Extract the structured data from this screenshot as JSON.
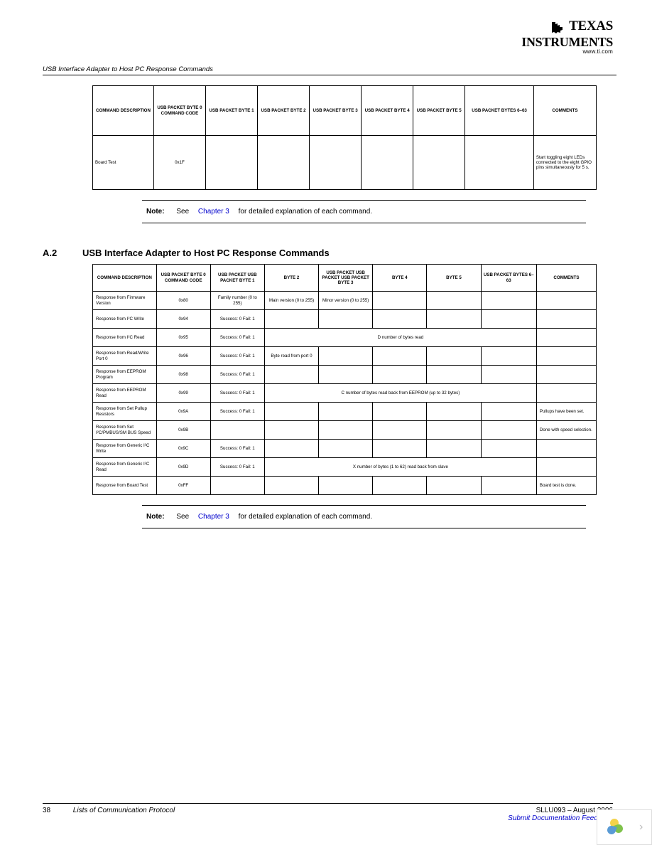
{
  "logo": {
    "line1": "TEXAS",
    "line2": "INSTRUMENTS",
    "url": "www.ti.com"
  },
  "header_title": "USB Interface Adapter to Host PC Response Commands",
  "table1": {
    "headers": [
      "COMMAND DESCRIPTION",
      "USB PACKET BYTE 0 COMMAND CODE",
      "USB PACKET BYTE 1",
      "USB PACKET BYTE 2",
      "USB PACKET BYTE 3",
      "USB PACKET BYTE 4",
      "USB PACKET BYTE 5",
      "USB PACKET BYTES 6–63",
      "COMMENTS"
    ],
    "row": {
      "desc": "Board Test",
      "code": "0x1F",
      "comment": "Start toggling eight LEDs connected to the eight GPIO pins simultaneously for 5 s."
    }
  },
  "note": {
    "label": "Note:",
    "pre": "See",
    "link": "Chapter 3",
    "post": "for detailed explanation of each command."
  },
  "section": {
    "num": "A.2",
    "title": "USB Interface Adapter to Host PC Response Commands"
  },
  "table2": {
    "headers": [
      "COMMAND DESCRIPTION",
      "USB PACKET BYTE 0 COMMAND CODE",
      "USB PACKET USB PACKET BYTE 1",
      "BYTE 2",
      "USB PACKET USB PACKET USB PACKET BYTE 3",
      "BYTE 4",
      "BYTE 5",
      "USB PACKET BYTES 6–63",
      "COMMENTS"
    ],
    "rows": [
      {
        "d": "Response from Firmware Version",
        "c": "0x80",
        "b1": "Family number (0 to 255)",
        "b2": "Main version (0 to 255)",
        "b3": "Minor version (0 to 255)",
        "b4": "",
        "b5": "",
        "b6": "",
        "cm": ""
      },
      {
        "d": "Response from I²C Write",
        "c": "0x94",
        "b1": "Success: 0 Fail: 1",
        "b2": "",
        "b3": "",
        "b4": "",
        "b5": "",
        "b6": "",
        "cm": ""
      },
      {
        "d": "Response from I²C Read",
        "c": "0x95",
        "b1": "Success: 0 Fail: 1",
        "span": "D number of bytes read",
        "cm": ""
      },
      {
        "d": "Response from Read/Write Port 0",
        "c": "0x96",
        "b1": "Success: 0 Fail: 1",
        "b2": "Byte read from port 0",
        "b3": "",
        "b4": "",
        "b5": "",
        "b6": "",
        "cm": ""
      },
      {
        "d": "Response from EEPROM Program",
        "c": "0x98",
        "b1": "Success: 0 Fail: 1",
        "b2": "",
        "b3": "",
        "b4": "",
        "b5": "",
        "b6": "",
        "cm": ""
      },
      {
        "d": "Response from EEPROM Read",
        "c": "0x99",
        "b1": "Success: 0 Fail: 1",
        "span": "C number of bytes read back from EEPROM (up to 32 bytes)",
        "cm": ""
      },
      {
        "d": "Response from Set Pullup Resistors",
        "c": "0x9A",
        "b1": "Success: 0 Fail: 1",
        "b2": "",
        "b3": "",
        "b4": "",
        "b5": "",
        "b6": "",
        "cm": "Pullups have been set."
      },
      {
        "d": "Response from Set I²C/PMBUS/SM BUS Speed",
        "c": "0x9B",
        "b1": "",
        "b2": "",
        "b3": "",
        "b4": "",
        "b5": "",
        "b6": "",
        "cm": "Done with speed selection."
      },
      {
        "d": "Response from Generic I²C Write",
        "c": "0x9C",
        "b1": "Success: 0 Fail: 1",
        "b2": "",
        "b3": "",
        "b4": "",
        "b5": "",
        "b6": "",
        "cm": ""
      },
      {
        "d": "Response from Generic I²C Read",
        "c": "0x9D",
        "b1": "Success: 0 Fail: 1",
        "span": "X number of bytes (1 to 62) read back from slave",
        "cm": ""
      },
      {
        "d": "Response from Board Test",
        "c": "0xFF",
        "b1": "",
        "b2": "",
        "b3": "",
        "b4": "",
        "b5": "",
        "b6": "",
        "cm": "Board test is done."
      }
    ]
  },
  "footer": {
    "page": "38",
    "left": "Lists of Communication Protocol",
    "right": "SLLU093 – August 2006",
    "link": "Submit Documentation Feedback"
  }
}
